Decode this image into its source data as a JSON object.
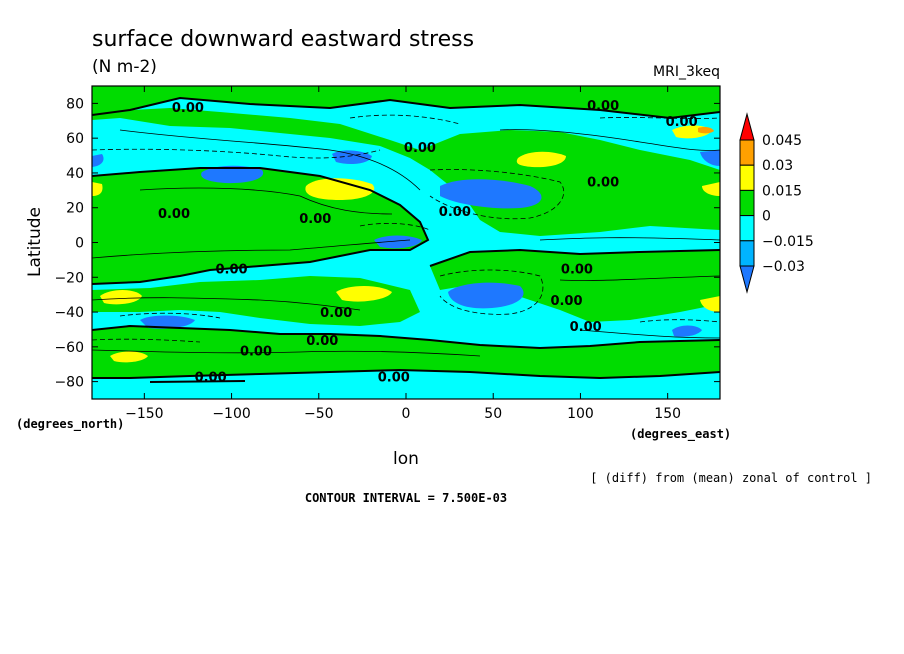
{
  "chart_data": {
    "type": "contour",
    "title": "surface downward eastward stress",
    "units": "(N m-2)",
    "model": "MRI_3keq",
    "xlabel": "lon",
    "ylabel": "Latitude",
    "x_units": "(degrees_east)",
    "y_units": "(degrees_north)",
    "xlim": [
      -180,
      180
    ],
    "ylim": [
      -90,
      90
    ],
    "x_ticks": [
      -150,
      -100,
      -50,
      0,
      50,
      100,
      150
    ],
    "x_tick_labels": [
      "−150",
      "−100",
      "−50",
      "0",
      "50",
      "100",
      "150"
    ],
    "y_ticks": [
      -80,
      -60,
      -40,
      -20,
      0,
      20,
      40,
      60,
      80
    ],
    "y_tick_labels": [
      "−80",
      "−60",
      "−40",
      "−20",
      "0",
      "20",
      "40",
      "60",
      "80"
    ],
    "levels": [
      -0.03,
      -0.015,
      0,
      0.015,
      0.03,
      0.045
    ],
    "level_labels": [
      "−0.03",
      "−0.015",
      "0",
      "0.015",
      "0.03",
      "0.045"
    ],
    "colors": {
      "below_-0.03": "#1e78ff",
      "-0.03_to_-0.015": "#00b4ff",
      "-0.015_to_0": "#00ffff",
      "0_to_0.015": "#00dc00",
      "0.015_to_0.03": "#ffff00",
      "0.03_to_0.045": "#ffa000",
      "above_0.045": "#ff0000"
    },
    "contour_labels": [
      {
        "text": "0.00",
        "lon": -125,
        "lat": 78
      },
      {
        "text": "0.00",
        "lon": 113,
        "lat": 79
      },
      {
        "text": "0.00",
        "lon": 158,
        "lat": 70
      },
      {
        "text": "0.00",
        "lon": 8,
        "lat": 55
      },
      {
        "text": "0.00",
        "lon": 113,
        "lat": 35
      },
      {
        "text": "0.00",
        "lon": -133,
        "lat": 17
      },
      {
        "text": "0.00",
        "lon": -52,
        "lat": 14
      },
      {
        "text": "0.00",
        "lon": 28,
        "lat": 18
      },
      {
        "text": "0.00",
        "lon": -100,
        "lat": -15
      },
      {
        "text": "0.00",
        "lon": 98,
        "lat": -15
      },
      {
        "text": "0.00",
        "lon": 92,
        "lat": -33
      },
      {
        "text": "0.00",
        "lon": 103,
        "lat": -48
      },
      {
        "text": "0.00",
        "lon": -40,
        "lat": -40
      },
      {
        "text": "0.00",
        "lon": -48,
        "lat": -56
      },
      {
        "text": "0.00",
        "lon": -86,
        "lat": -62
      },
      {
        "text": "0.00",
        "lon": -112,
        "lat": -77
      },
      {
        "text": "0.00",
        "lon": -7,
        "lat": -77
      }
    ],
    "annotation": "[ (diff) from (mean) zonal of control ]",
    "contour_interval": "CONTOUR INTERVAL = 7.500E-03"
  }
}
